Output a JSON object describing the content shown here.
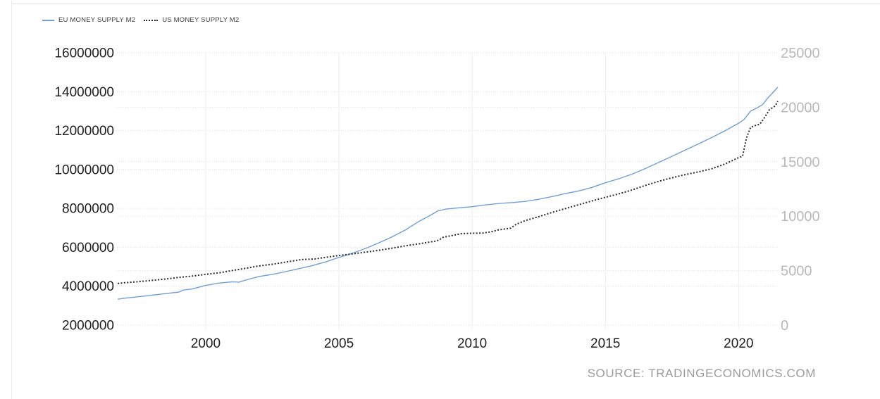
{
  "source_label": "SOURCE: TRADINGECONOMICS.COM",
  "colors": {
    "eu_line": "#6f9fd9",
    "us_line": "#2b2b2b",
    "grid_horizontal": "#dedede",
    "grid_vertical": "#ededed",
    "axis_text_dark": "#1f1f1f",
    "axis_text_light": "#b9b9b9",
    "source_text": "#9c9c9c"
  },
  "chart_data": {
    "type": "line",
    "title": "",
    "xlabel": "",
    "ylabel_left": "",
    "ylabel_right": "",
    "grid": true,
    "legend_position": "top-left",
    "x_axis": {
      "min": 1996.67,
      "max": 2021.5,
      "ticks": [
        2000,
        2005,
        2010,
        2015,
        2020
      ]
    },
    "y_left": {
      "min": 2000000,
      "max": 16000000,
      "ticks": [
        16000000,
        14000000,
        12000000,
        10000000,
        8000000,
        6000000,
        4000000,
        2000000
      ]
    },
    "y_right": {
      "min": 0,
      "max": 25000,
      "ticks": [
        25000,
        20000,
        15000,
        10000,
        5000,
        0
      ]
    },
    "series": [
      {
        "name": "EU MONEY SUPPLY M2",
        "axis": "left",
        "color": "#6f9fd9",
        "style": "solid",
        "points": [
          [
            1996.7,
            3330000
          ],
          [
            1997.0,
            3390000
          ],
          [
            1997.5,
            3460000
          ],
          [
            1998.0,
            3540000
          ],
          [
            1998.5,
            3620000
          ],
          [
            1999.0,
            3700000
          ],
          [
            1999.15,
            3800000
          ],
          [
            1999.5,
            3860000
          ],
          [
            2000.0,
            4040000
          ],
          [
            2000.5,
            4160000
          ],
          [
            2001.0,
            4230000
          ],
          [
            2001.25,
            4210000
          ],
          [
            2001.6,
            4350000
          ],
          [
            2002.0,
            4500000
          ],
          [
            2002.5,
            4610000
          ],
          [
            2003.0,
            4750000
          ],
          [
            2003.5,
            4900000
          ],
          [
            2004.0,
            5060000
          ],
          [
            2004.5,
            5250000
          ],
          [
            2005.0,
            5480000
          ],
          [
            2005.5,
            5690000
          ],
          [
            2006.0,
            5940000
          ],
          [
            2006.5,
            6230000
          ],
          [
            2007.0,
            6540000
          ],
          [
            2007.5,
            6900000
          ],
          [
            2008.0,
            7330000
          ],
          [
            2008.4,
            7620000
          ],
          [
            2008.7,
            7860000
          ],
          [
            2009.0,
            7960000
          ],
          [
            2009.5,
            8030000
          ],
          [
            2010.0,
            8090000
          ],
          [
            2010.5,
            8180000
          ],
          [
            2011.0,
            8250000
          ],
          [
            2011.6,
            8310000
          ],
          [
            2012.0,
            8360000
          ],
          [
            2012.5,
            8470000
          ],
          [
            2013.0,
            8610000
          ],
          [
            2013.5,
            8760000
          ],
          [
            2014.0,
            8900000
          ],
          [
            2014.5,
            9080000
          ],
          [
            2015.0,
            9320000
          ],
          [
            2015.5,
            9520000
          ],
          [
            2016.0,
            9760000
          ],
          [
            2016.5,
            10050000
          ],
          [
            2017.0,
            10360000
          ],
          [
            2017.5,
            10680000
          ],
          [
            2018.0,
            11000000
          ],
          [
            2018.5,
            11320000
          ],
          [
            2019.0,
            11650000
          ],
          [
            2019.5,
            12000000
          ],
          [
            2020.0,
            12380000
          ],
          [
            2020.2,
            12560000
          ],
          [
            2020.45,
            13000000
          ],
          [
            2020.7,
            13170000
          ],
          [
            2020.9,
            13330000
          ],
          [
            2021.1,
            13680000
          ],
          [
            2021.3,
            13970000
          ],
          [
            2021.47,
            14230000
          ]
        ]
      },
      {
        "name": "US MONEY SUPPLY M2",
        "axis": "right",
        "color": "#2b2b2b",
        "style": "dotted",
        "points": [
          [
            1996.7,
            3820
          ],
          [
            1997.0,
            3900
          ],
          [
            1997.5,
            3990
          ],
          [
            1998.0,
            4110
          ],
          [
            1998.5,
            4230
          ],
          [
            1999.0,
            4380
          ],
          [
            1999.5,
            4500
          ],
          [
            2000.0,
            4660
          ],
          [
            2000.5,
            4800
          ],
          [
            2001.0,
            5010
          ],
          [
            2001.5,
            5210
          ],
          [
            2002.0,
            5430
          ],
          [
            2002.5,
            5590
          ],
          [
            2003.0,
            5780
          ],
          [
            2003.6,
            6020
          ],
          [
            2004.1,
            6070
          ],
          [
            2004.5,
            6220
          ],
          [
            2005.0,
            6390
          ],
          [
            2005.5,
            6540
          ],
          [
            2006.0,
            6700
          ],
          [
            2006.5,
            6870
          ],
          [
            2007.0,
            7070
          ],
          [
            2007.5,
            7280
          ],
          [
            2008.0,
            7460
          ],
          [
            2008.6,
            7700
          ],
          [
            2008.75,
            7800
          ],
          [
            2008.9,
            8050
          ],
          [
            2009.2,
            8200
          ],
          [
            2009.6,
            8400
          ],
          [
            2010.0,
            8430
          ],
          [
            2010.4,
            8450
          ],
          [
            2010.7,
            8560
          ],
          [
            2011.0,
            8750
          ],
          [
            2011.45,
            8900
          ],
          [
            2011.65,
            9250
          ],
          [
            2012.0,
            9600
          ],
          [
            2012.5,
            9950
          ],
          [
            2013.0,
            10350
          ],
          [
            2013.5,
            10700
          ],
          [
            2014.0,
            11050
          ],
          [
            2014.5,
            11400
          ],
          [
            2015.0,
            11730
          ],
          [
            2015.5,
            12050
          ],
          [
            2016.0,
            12400
          ],
          [
            2016.5,
            12820
          ],
          [
            2017.0,
            13200
          ],
          [
            2017.5,
            13520
          ],
          [
            2018.0,
            13820
          ],
          [
            2018.5,
            14070
          ],
          [
            2019.0,
            14360
          ],
          [
            2019.5,
            14800
          ],
          [
            2019.95,
            15320
          ],
          [
            2020.15,
            15500
          ],
          [
            2020.3,
            17200
          ],
          [
            2020.45,
            18150
          ],
          [
            2020.6,
            18300
          ],
          [
            2020.8,
            18450
          ],
          [
            2021.0,
            19150
          ],
          [
            2021.15,
            19750
          ],
          [
            2021.3,
            20000
          ],
          [
            2021.38,
            20150
          ],
          [
            2021.47,
            20550
          ]
        ]
      }
    ]
  }
}
